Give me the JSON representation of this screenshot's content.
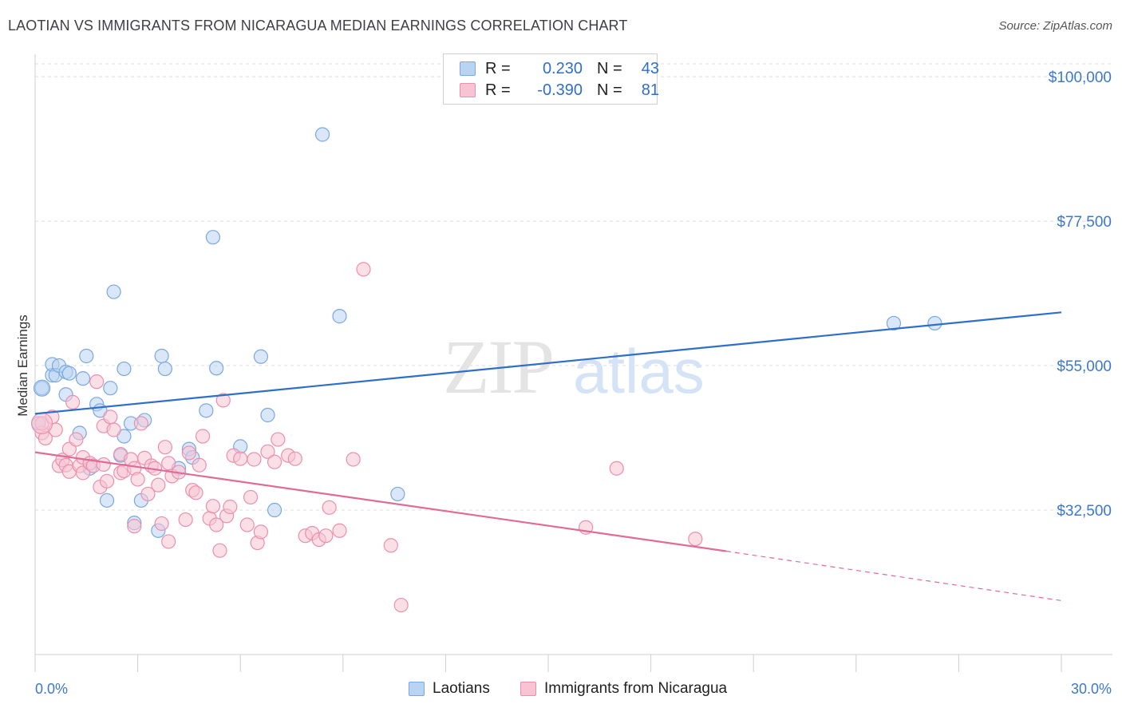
{
  "header": {
    "title": "LAOTIAN VS IMMIGRANTS FROM NICARAGUA MEDIAN EARNINGS CORRELATION CHART",
    "source": "Source: ZipAtlas.com"
  },
  "watermark": {
    "zip": "ZIP",
    "atlas": "atlas"
  },
  "legend": {
    "rows": [
      {
        "r_label": "R =",
        "r_value": "0.230",
        "n_label": "N =",
        "n_value": "43"
      },
      {
        "r_label": "R =",
        "r_value": "-0.390",
        "n_label": "N =",
        "n_value": "81"
      }
    ]
  },
  "bottom_legend": {
    "series1": "Laotians",
    "series2": "Immigrants from Nicaragua"
  },
  "colors": {
    "blue_fill": "#b9d3f3",
    "blue_stroke": "#7aa8e0",
    "blue_line": "#2f6fca",
    "pink_fill": "#f7c4d4",
    "pink_stroke": "#ec8fac",
    "pink_line": "#e26b96",
    "label_blue": "#3d78c9",
    "grid": "#dedede"
  },
  "chart_data": {
    "type": "scatter",
    "title": "LAOTIAN VS IMMIGRANTS FROM NICARAGUA MEDIAN EARNINGS CORRELATION CHART",
    "xlabel": "",
    "ylabel": "Median Earnings",
    "x_unit": "%",
    "xlim": [
      0,
      30
    ],
    "ylim": [
      10000,
      102000
    ],
    "x_tick_labels": [
      "0.0%",
      "30.0%"
    ],
    "y_ticks": [
      32500,
      55000,
      77500,
      100000
    ],
    "y_tick_labels": [
      "$32,500",
      "$55,000",
      "$77,500",
      "$100,000"
    ],
    "grid": true,
    "series": [
      {
        "name": "Laotians",
        "r": 0.23,
        "n": 43,
        "trend": {
          "x0": 0,
          "y0": 47500,
          "x1": 30,
          "y1": 63300
        },
        "points": [
          [
            0.2,
            51500
          ],
          [
            0.5,
            53500
          ],
          [
            0.5,
            55200
          ],
          [
            0.6,
            53500
          ],
          [
            0.7,
            55000
          ],
          [
            0.9,
            54000
          ],
          [
            1.0,
            53800
          ],
          [
            0.9,
            50500
          ],
          [
            1.4,
            53000
          ],
          [
            1.5,
            56500
          ],
          [
            1.8,
            49000
          ],
          [
            1.9,
            48000
          ],
          [
            1.3,
            44500
          ],
          [
            2.2,
            51500
          ],
          [
            2.3,
            66500
          ],
          [
            2.6,
            54500
          ],
          [
            2.8,
            46000
          ],
          [
            3.2,
            46500
          ],
          [
            2.5,
            41000
          ],
          [
            2.6,
            44000
          ],
          [
            2.9,
            30500
          ],
          [
            3.1,
            34000
          ],
          [
            1.6,
            39000
          ],
          [
            2.1,
            34000
          ],
          [
            3.7,
            56500
          ],
          [
            3.8,
            54500
          ],
          [
            4.5,
            42000
          ],
          [
            4.6,
            40700
          ],
          [
            5.0,
            48000
          ],
          [
            5.2,
            75000
          ],
          [
            5.3,
            54600
          ],
          [
            6.0,
            42400
          ],
          [
            6.6,
            56400
          ],
          [
            6.8,
            47300
          ],
          [
            7.0,
            32500
          ],
          [
            8.4,
            91000
          ],
          [
            8.9,
            62700
          ],
          [
            10.6,
            35000
          ],
          [
            3.6,
            29300
          ],
          [
            4.2,
            39000
          ],
          [
            25.1,
            61600
          ],
          [
            26.3,
            61600
          ],
          [
            0.1,
            46000
          ]
        ]
      },
      {
        "name": "Immigrants from Nicaragua",
        "r": -0.39,
        "n": 81,
        "trend": {
          "x0": 0,
          "y0": 41500,
          "x1": 20.2,
          "y1": 26100,
          "dash_x1": 30,
          "dash_y1": 18400
        },
        "points": [
          [
            0.2,
            44500
          ],
          [
            0.2,
            46000
          ],
          [
            0.3,
            43700
          ],
          [
            0.5,
            47000
          ],
          [
            0.6,
            45000
          ],
          [
            0.7,
            39400
          ],
          [
            0.8,
            40300
          ],
          [
            0.9,
            39500
          ],
          [
            1.0,
            42000
          ],
          [
            1.0,
            38500
          ],
          [
            1.1,
            49300
          ],
          [
            1.2,
            43500
          ],
          [
            1.3,
            39400
          ],
          [
            1.4,
            40700
          ],
          [
            1.4,
            38300
          ],
          [
            1.6,
            39800
          ],
          [
            1.7,
            39400
          ],
          [
            1.9,
            36100
          ],
          [
            1.8,
            52500
          ],
          [
            2.0,
            45600
          ],
          [
            2.0,
            39600
          ],
          [
            2.1,
            37000
          ],
          [
            2.2,
            47000
          ],
          [
            2.3,
            45000
          ],
          [
            2.5,
            41200
          ],
          [
            2.5,
            38300
          ],
          [
            2.6,
            38600
          ],
          [
            2.8,
            40400
          ],
          [
            2.9,
            39000
          ],
          [
            2.9,
            30000
          ],
          [
            3.0,
            37300
          ],
          [
            3.1,
            46000
          ],
          [
            3.2,
            40600
          ],
          [
            3.3,
            35000
          ],
          [
            3.4,
            39400
          ],
          [
            3.5,
            39000
          ],
          [
            3.6,
            36400
          ],
          [
            3.7,
            30400
          ],
          [
            3.8,
            42300
          ],
          [
            3.9,
            39800
          ],
          [
            3.9,
            27600
          ],
          [
            4.0,
            37800
          ],
          [
            4.2,
            38400
          ],
          [
            4.4,
            31000
          ],
          [
            4.5,
            41400
          ],
          [
            4.6,
            35600
          ],
          [
            4.7,
            35200
          ],
          [
            4.8,
            39500
          ],
          [
            4.9,
            44000
          ],
          [
            5.1,
            31200
          ],
          [
            5.2,
            33100
          ],
          [
            5.3,
            30200
          ],
          [
            5.4,
            26200
          ],
          [
            5.5,
            49600
          ],
          [
            5.6,
            31600
          ],
          [
            5.7,
            33000
          ],
          [
            5.8,
            41000
          ],
          [
            6.0,
            40500
          ],
          [
            6.2,
            30200
          ],
          [
            6.3,
            34500
          ],
          [
            6.4,
            40400
          ],
          [
            6.5,
            27400
          ],
          [
            6.6,
            29100
          ],
          [
            6.8,
            41600
          ],
          [
            7.0,
            40000
          ],
          [
            7.1,
            43500
          ],
          [
            7.4,
            41000
          ],
          [
            7.6,
            40500
          ],
          [
            7.9,
            28500
          ],
          [
            8.1,
            28900
          ],
          [
            8.3,
            27900
          ],
          [
            8.5,
            28500
          ],
          [
            8.6,
            32900
          ],
          [
            8.9,
            29300
          ],
          [
            9.3,
            40400
          ],
          [
            9.6,
            70000
          ],
          [
            10.4,
            27000
          ],
          [
            10.7,
            17700
          ],
          [
            16.1,
            29800
          ],
          [
            17.0,
            39000
          ],
          [
            19.3,
            28000
          ]
        ]
      }
    ]
  }
}
